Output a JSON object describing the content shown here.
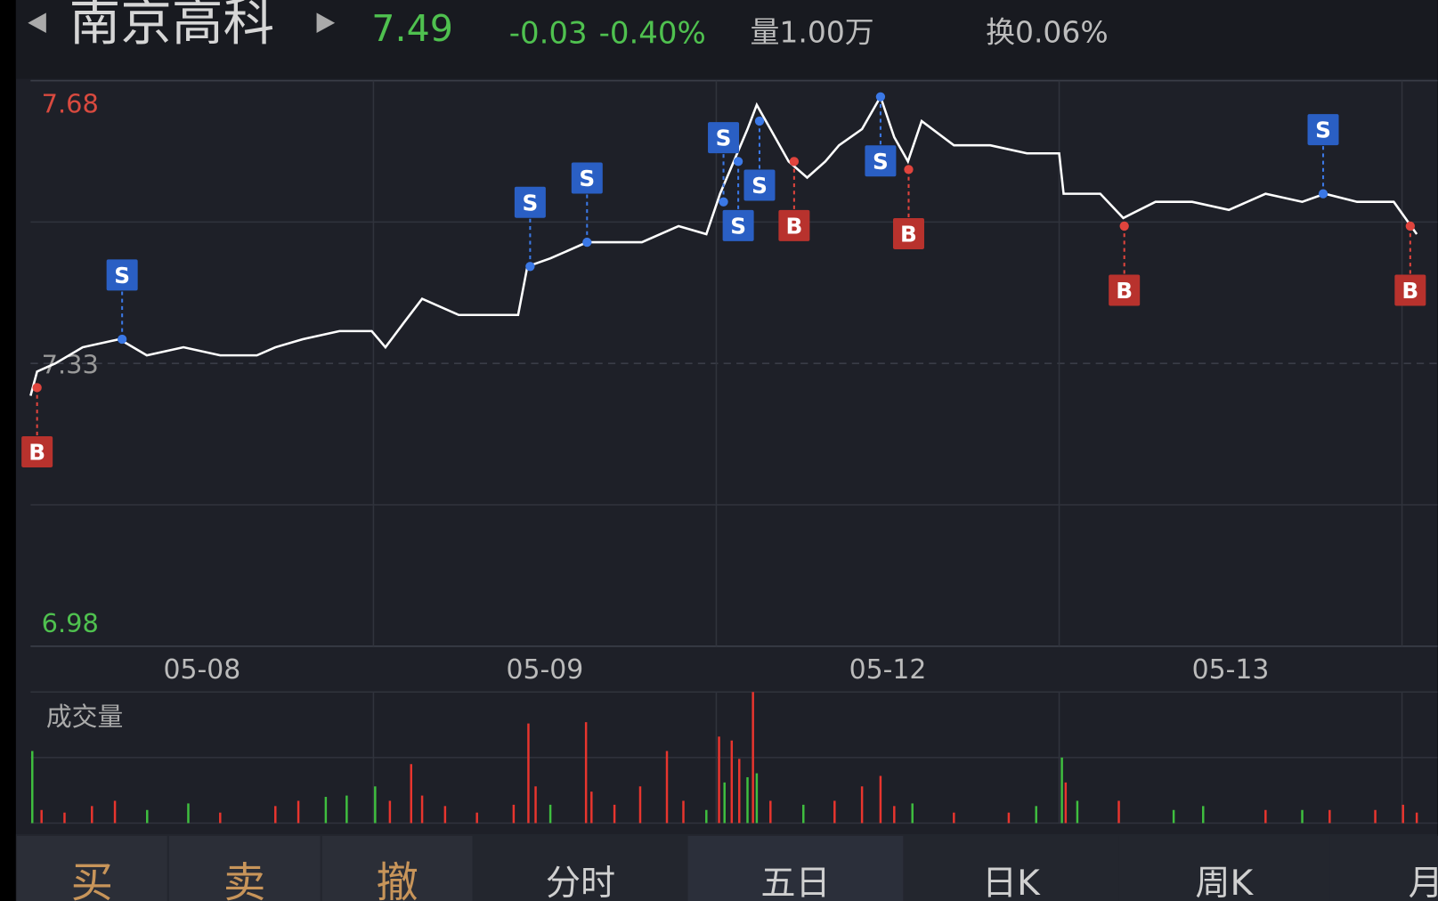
{
  "header": {
    "name": "南京高科",
    "price": "7.49",
    "change": "-0.03",
    "change_pct": "-0.40%",
    "volume": "量1.00万",
    "turnover": "换0.06%"
  },
  "chart_data": {
    "type": "line",
    "x": [
      0,
      0.019,
      0.072,
      0.152,
      0.259,
      0.339,
      0.446,
      0.553,
      0.66,
      0.714,
      0.794,
      0.901,
      0.995,
      1.035,
      1.088,
      1.142,
      1.249,
      1.356,
      1.422,
      1.449,
      1.516,
      1.623,
      1.676,
      1.783,
      1.89,
      1.971,
      2.011,
      2.051,
      2.091,
      2.118,
      2.158,
      2.211,
      2.265,
      2.318,
      2.358,
      2.425,
      2.479,
      2.519,
      2.559,
      2.599,
      2.693,
      2.799,
      2.906,
      3.0,
      3.013,
      3.12,
      3.187,
      3.281,
      3.388,
      3.495,
      3.602,
      3.709,
      3.775,
      3.869,
      3.976,
      4.043
    ],
    "series": [
      {
        "color": "#ffffff",
        "values": [
          7.29,
          7.32,
          7.33,
          7.35,
          7.36,
          7.34,
          7.35,
          7.34,
          7.34,
          7.35,
          7.36,
          7.37,
          7.37,
          7.35,
          7.38,
          7.41,
          7.39,
          7.39,
          7.39,
          7.45,
          7.46,
          7.48,
          7.48,
          7.48,
          7.5,
          7.49,
          7.54,
          7.58,
          7.62,
          7.65,
          7.62,
          7.58,
          7.56,
          7.58,
          7.6,
          7.62,
          7.66,
          7.61,
          7.58,
          7.63,
          7.6,
          7.6,
          7.59,
          7.59,
          7.54,
          7.54,
          7.51,
          7.53,
          7.53,
          7.52,
          7.54,
          7.53,
          7.54,
          7.53,
          7.53,
          7.49
        ]
      }
    ],
    "xlim": [
      0,
      4.104
    ],
    "ylim": [
      6.98,
      7.68
    ],
    "yticks": [
      6.98,
      7.33,
      7.68
    ],
    "xticks": [
      {
        "value": 0.5,
        "label": "05-08"
      },
      {
        "value": 1.5,
        "label": "05-09"
      },
      {
        "value": 2.5,
        "label": "05-12"
      },
      {
        "value": 3.5,
        "label": "05-13"
      }
    ],
    "trades": [
      {
        "label": "B",
        "x": 0.019,
        "price": 7.3
      },
      {
        "label": "S",
        "x": 0.267,
        "price": 7.36
      },
      {
        "label": "S",
        "x": 1.457,
        "price": 7.45
      },
      {
        "label": "S",
        "x": 1.623,
        "price": 7.48
      },
      {
        "label": "S",
        "x": 2.021,
        "price": 7.53
      },
      {
        "label": "S",
        "x": 2.064,
        "price": 7.58
      },
      {
        "label": "S",
        "x": 2.126,
        "price": 7.63
      },
      {
        "label": "B",
        "x": 2.227,
        "price": 7.58
      },
      {
        "label": "S",
        "x": 2.479,
        "price": 7.66
      },
      {
        "label": "B",
        "x": 2.561,
        "price": 7.57
      },
      {
        "label": "B",
        "x": 3.19,
        "price": 7.5
      },
      {
        "label": "S",
        "x": 3.77,
        "price": 7.54
      },
      {
        "label": "B",
        "x": 4.024,
        "price": 7.5
      }
    ],
    "volume": {
      "title": "成交量",
      "ylim": [
        0,
        100
      ],
      "x": [
        0.005,
        0.032,
        0.099,
        0.179,
        0.246,
        0.34,
        0.46,
        0.553,
        0.714,
        0.781,
        0.861,
        0.922,
        1.005,
        1.048,
        1.11,
        1.142,
        1.209,
        1.302,
        1.409,
        1.452,
        1.473,
        1.516,
        1.62,
        1.636,
        1.703,
        1.778,
        1.856,
        1.904,
        1.971,
        2.008,
        2.024,
        2.045,
        2.067,
        2.091,
        2.107,
        2.118,
        2.158,
        2.254,
        2.345,
        2.425,
        2.479,
        2.519,
        2.572,
        2.693,
        2.853,
        2.933,
        3.008,
        3.019,
        3.053,
        3.174,
        3.334,
        3.42,
        3.602,
        3.709,
        3.789,
        3.922,
        4.003,
        4.043
      ],
      "values": [
        55,
        10,
        8,
        13,
        17,
        10,
        15,
        8,
        13,
        17,
        20,
        21,
        28,
        17,
        45,
        21,
        13,
        8,
        14,
        76,
        28,
        14,
        77,
        24,
        14,
        28,
        55,
        17,
        10,
        66,
        31,
        63,
        49,
        35,
        100,
        38,
        17,
        14,
        17,
        28,
        36,
        13,
        15,
        8,
        8,
        13,
        50,
        31,
        17,
        17,
        10,
        13,
        10,
        10,
        10,
        10,
        14,
        8
      ],
      "colors": [
        "#3fbf3f",
        "#e8352e",
        "#e8352e",
        "#e8352e",
        "#e8352e",
        "#3fbf3f",
        "#3fbf3f",
        "#e8352e",
        "#e8352e",
        "#e8352e",
        "#3fbf3f",
        "#3fbf3f",
        "#3fbf3f",
        "#e8352e",
        "#e8352e",
        "#e8352e",
        "#e8352e",
        "#e8352e",
        "#e8352e",
        "#e8352e",
        "#e8352e",
        "#3fbf3f",
        "#e8352e",
        "#e8352e",
        "#e8352e",
        "#e8352e",
        "#e8352e",
        "#e8352e",
        "#3fbf3f",
        "#e8352e",
        "#3fbf3f",
        "#e8352e",
        "#e8352e",
        "#3fbf3f",
        "#e8352e",
        "#3fbf3f",
        "#e8352e",
        "#3fbf3f",
        "#e8352e",
        "#e8352e",
        "#e8352e",
        "#e8352e",
        "#3fbf3f",
        "#e8352e",
        "#e8352e",
        "#3fbf3f",
        "#3fbf3f",
        "#e8352e",
        "#3fbf3f",
        "#e8352e",
        "#3fbf3f",
        "#3fbf3f",
        "#e8352e",
        "#3fbf3f",
        "#e8352e",
        "#e8352e",
        "#e8352e",
        "#e8352e"
      ]
    }
  },
  "tabs": [
    "买",
    "卖",
    "撤",
    "分时",
    "五日",
    "日K",
    "周K",
    "月"
  ]
}
